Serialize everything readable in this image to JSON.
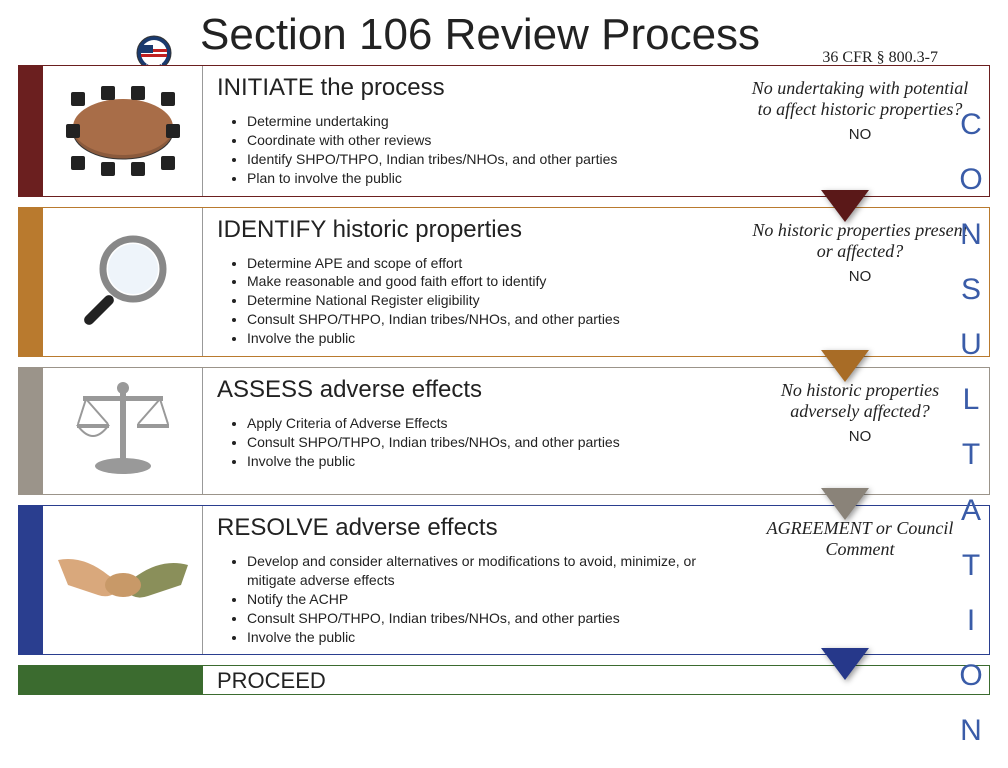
{
  "header": {
    "title": "Section 106 Review Process",
    "cfr": "36 CFR § 800.3-7",
    "logo_label": "ACHP"
  },
  "sidebar_word": "CONSULTATION",
  "proceed_label": "PROCEED",
  "proceed_color": "#3b6b2f",
  "steps": [
    {
      "title": "INITIATE the process",
      "color_bar": "#6b1f1f",
      "color_border": "#6b1f1f",
      "color_triangle": "#5a1818",
      "icon": "table",
      "bullets": [
        "Determine undertaking",
        "Coordinate with other reviews",
        "Identify SHPO/THPO, Indian tribes/NHOs, and other parties",
        "Plan to involve the public"
      ],
      "question": "No undertaking with potential to affect historic properties?",
      "no_label": "NO"
    },
    {
      "title": "IDENTIFY historic properties",
      "color_bar": "#b97a2e",
      "color_border": "#b97a2e",
      "color_triangle": "#a86c26",
      "icon": "magnifier",
      "bullets": [
        "Determine APE and scope of effort",
        "Make reasonable and good faith effort to identify",
        "Determine National Register eligibility",
        "Consult SHPO/THPO, Indian tribes/NHOs, and other parties",
        "Involve the public"
      ],
      "question": "No historic properties present or affected?",
      "no_label": "NO"
    },
    {
      "title": "ASSESS adverse effects",
      "color_bar": "#9b948a",
      "color_border": "#9b948a",
      "color_triangle": "#8a8379",
      "icon": "scales",
      "bullets": [
        "Apply Criteria of Adverse Effects",
        "Consult SHPO/THPO, Indian tribes/NHOs, and other parties",
        "Involve the public"
      ],
      "question": "No historic properties adversely affected?",
      "no_label": "NO"
    },
    {
      "title": "RESOLVE adverse effects",
      "color_bar": "#2a3e8f",
      "color_border": "#2a3e8f",
      "color_triangle": "#26388a",
      "icon": "handshake",
      "bullets": [
        "Develop and consider alternatives or modifications to avoid, minimize, or mitigate adverse effects",
        "Notify the ACHP",
        "Consult SHPO/THPO, Indian tribes/NHOs, and other parties",
        "Involve the public"
      ],
      "question": "AGREEMENT or Council Comment",
      "no_label": ""
    }
  ]
}
